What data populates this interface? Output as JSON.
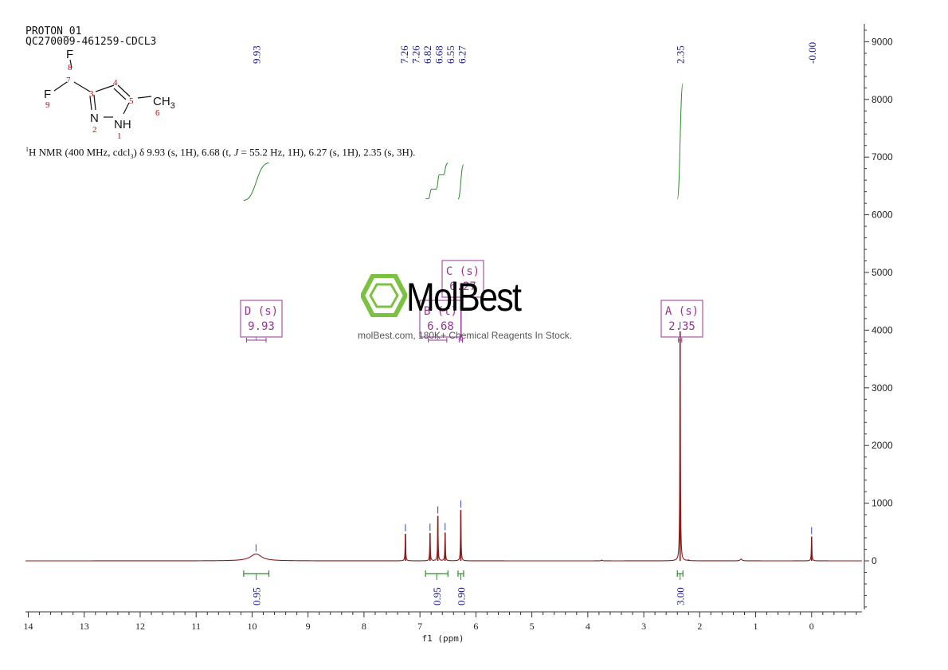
{
  "header": {
    "line1": "PROTON_01",
    "line2": "QC270009-461259-CDCL3"
  },
  "description": {
    "nucleus": "1",
    "text_a": "H NMR (400 MHz, cdcl",
    "sub": "3",
    "text_b": ") δ 9.93 (s, 1H), 6.68 (t, ",
    "j": "J",
    "text_c": " = 55.2 Hz, 1H), 6.27 (s, 1H), 2.35 (s, 3H)."
  },
  "structure": {
    "atoms": {
      "F8": "F",
      "F9": "F",
      "N2": "N",
      "NH": "NH",
      "CH": "CH",
      "CH_sub": "3"
    },
    "numbers": [
      "8",
      "7",
      "3",
      "4",
      "5",
      "6",
      "9",
      "2",
      "1"
    ],
    "number_color": "#cc0000"
  },
  "watermark": {
    "brand": "MolBest",
    "tagline": "molBest.com, 180K+ Chemical Reagents In Stock.",
    "icon": "hexagon-benzene-icon",
    "icon_color": "#7cc242"
  },
  "colors": {
    "spectrum": "#8b1a1a",
    "integral": "#2e8b2e",
    "peak_label": "#1a1a80",
    "multiplet_box": "#993399",
    "axis": "#333333"
  },
  "chart_data": {
    "type": "line",
    "xlabel": "f1 (ppm)",
    "x_ticks": [
      "14",
      "13",
      "12",
      "11",
      "10",
      "9",
      "8",
      "7",
      "6",
      "5",
      "4",
      "3",
      "2",
      "1",
      "0"
    ],
    "xlim": [
      14.05,
      -0.9
    ],
    "x_reversed": true,
    "y_ticks": [
      "0",
      "1000",
      "2000",
      "3000",
      "4000",
      "5000",
      "6000",
      "7000",
      "8000",
      "9000"
    ],
    "ylim": [
      -900,
      9300
    ],
    "peaks": [
      {
        "ppm": 9.93,
        "height": 120,
        "width": 0.12
      },
      {
        "ppm": 7.26,
        "height": 470,
        "width": 0.006
      },
      {
        "ppm": 6.82,
        "height": 480,
        "width": 0.006
      },
      {
        "ppm": 6.68,
        "height": 780,
        "width": 0.006
      },
      {
        "ppm": 6.55,
        "height": 490,
        "width": 0.006
      },
      {
        "ppm": 6.27,
        "height": 880,
        "width": 0.006
      },
      {
        "ppm": 3.75,
        "height": 15,
        "width": 0.01
      },
      {
        "ppm": 2.35,
        "height": 3980,
        "width": 0.006
      },
      {
        "ppm": 2.2,
        "height": 12,
        "width": 0.01
      },
      {
        "ppm": 1.26,
        "height": 30,
        "width": 0.02
      },
      {
        "ppm": 0.0,
        "height": 420,
        "width": 0.006
      }
    ],
    "peak_labels": [
      "7.26",
      "7.26",
      "6.82",
      "6.68",
      "6.55",
      "6.27"
    ],
    "peak_labels_single": [
      {
        "ppm": 9.93,
        "label": "9.93"
      },
      {
        "ppm": 2.35,
        "label": "2.35"
      },
      {
        "ppm": 0.0,
        "label": "-0.00"
      }
    ],
    "peak_label_group": {
      "from_ppm": 7.26,
      "to_ppm": 6.27
    },
    "integrals": [
      {
        "from": 10.15,
        "to": 9.7,
        "value": "0.95",
        "curve": [
          [
            10.15,
            6250
          ],
          [
            9.7,
            6900
          ]
        ]
      },
      {
        "from": 6.9,
        "to": 6.5,
        "value": "0.95",
        "curve": [
          [
            6.9,
            6280
          ],
          [
            6.5,
            6900
          ]
        ]
      },
      {
        "from": 6.32,
        "to": 6.22,
        "value": "0.90",
        "curve": [
          [
            6.32,
            6270
          ],
          [
            6.22,
            6870
          ]
        ]
      },
      {
        "from": 2.4,
        "to": 2.3,
        "value": "3.00",
        "curve": [
          [
            2.4,
            6270
          ],
          [
            2.3,
            8280
          ]
        ]
      }
    ],
    "multiplets": [
      {
        "id": "D",
        "mult": "D (s)",
        "shift": "9.93",
        "range": [
          10.1,
          9.75
        ]
      },
      {
        "id": "B",
        "mult": "B (t)",
        "shift": "6.68",
        "range": [
          6.85,
          6.52
        ]
      },
      {
        "id": "C",
        "mult": "C (s)",
        "shift": "6.27",
        "range": [
          6.3,
          6.24
        ]
      },
      {
        "id": "A",
        "mult": "A (s)",
        "shift": "2.35",
        "range": [
          2.38,
          2.32
        ]
      }
    ]
  }
}
